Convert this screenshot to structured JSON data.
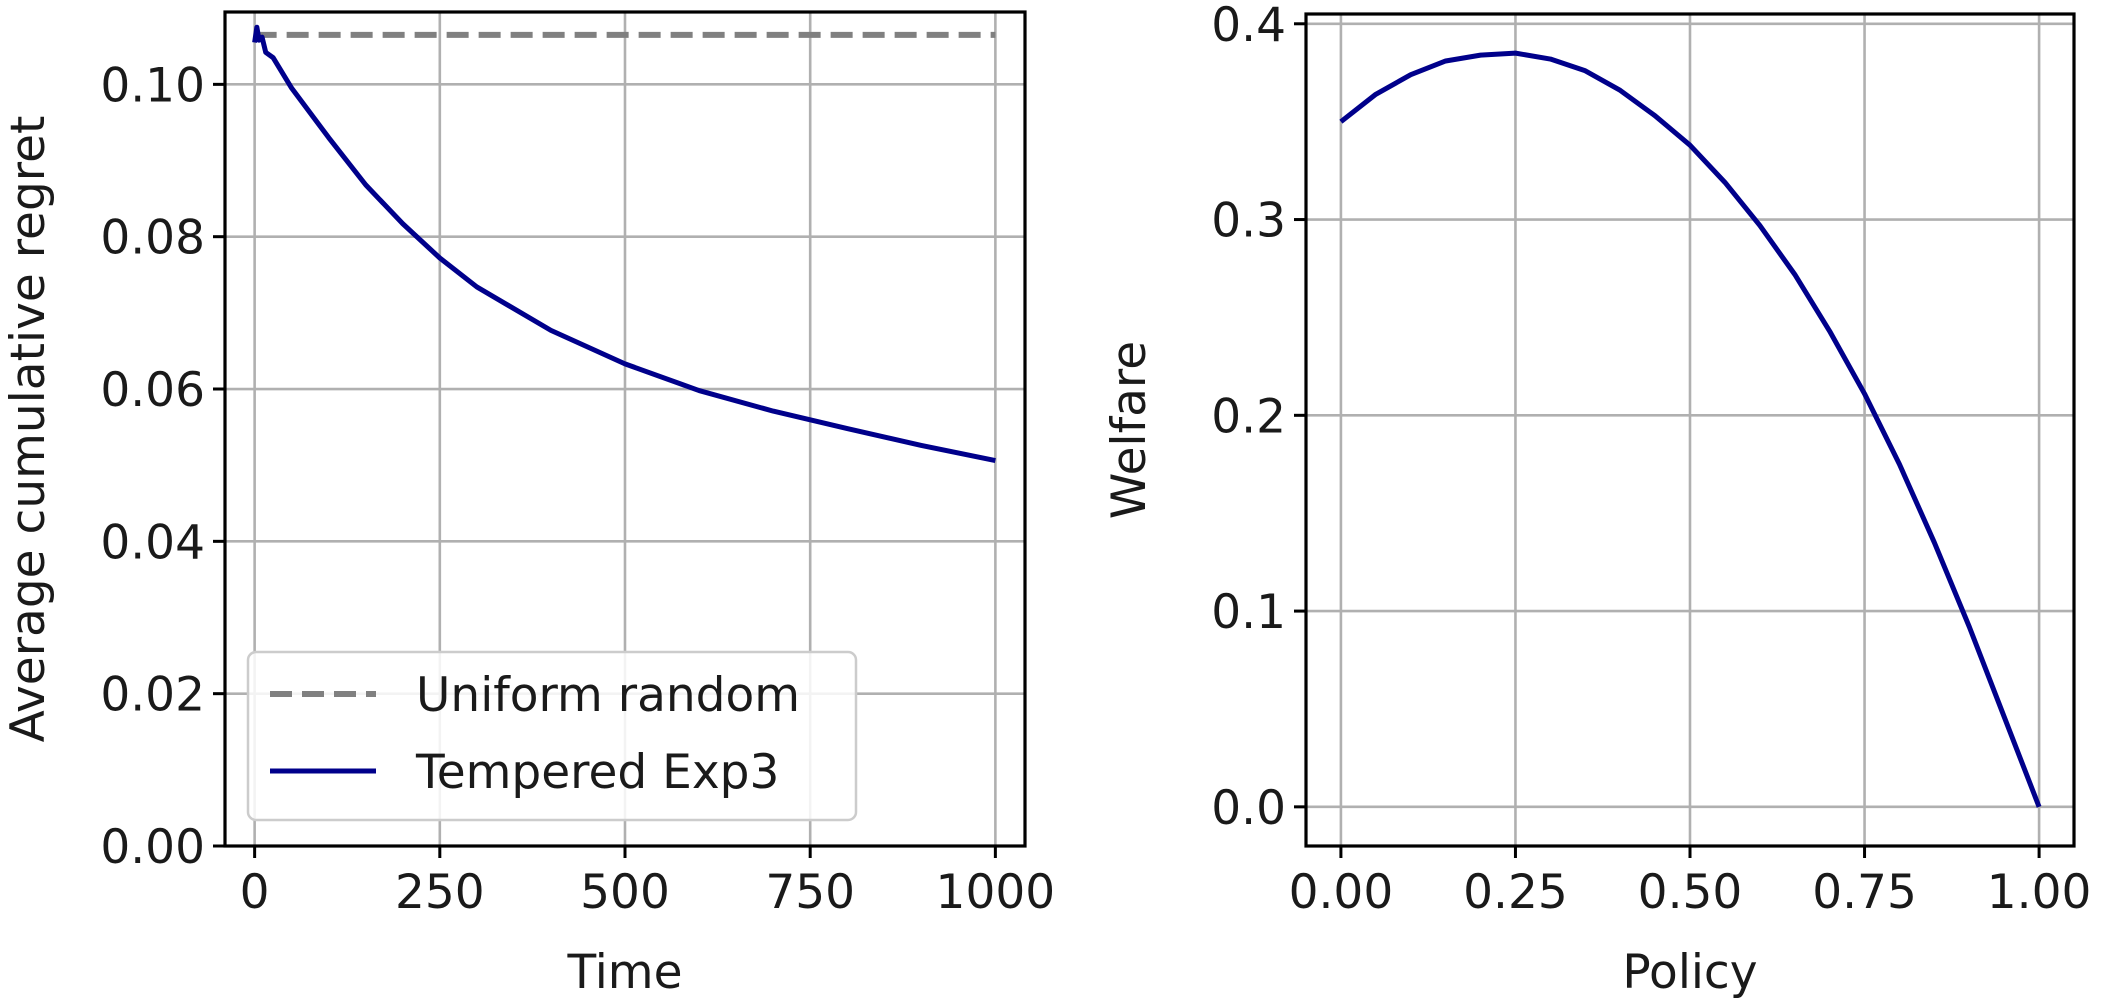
{
  "chart_data": [
    {
      "type": "line",
      "xlabel": "Time",
      "ylabel": "Average cumulative regret",
      "xlim": [
        -40,
        1040
      ],
      "ylim": [
        0.0,
        0.1095
      ],
      "xticks": [
        0,
        250,
        500,
        750,
        1000
      ],
      "xtick_labels": [
        "0",
        "250",
        "500",
        "750",
        "1000"
      ],
      "yticks": [
        0.0,
        0.02,
        0.04,
        0.06,
        0.08,
        0.1
      ],
      "ytick_labels": [
        "0.00",
        "0.02",
        "0.04",
        "0.06",
        "0.08",
        "0.10"
      ],
      "grid": true,
      "legend_position": "lower-left",
      "series": [
        {
          "name": "Uniform random",
          "style": "dashed",
          "color": "#808080",
          "x": [
            0,
            1000
          ],
          "y": [
            0.1065,
            0.1065
          ]
        },
        {
          "name": "Tempered Exp3",
          "style": "solid",
          "color": "#00008b",
          "x": [
            0,
            3,
            6,
            10,
            15,
            25,
            50,
            100,
            150,
            200,
            250,
            300,
            400,
            500,
            600,
            700,
            800,
            900,
            1000
          ],
          "y": [
            0.1055,
            0.1075,
            0.1058,
            0.1062,
            0.1042,
            0.1035,
            0.0995,
            0.093,
            0.0868,
            0.0817,
            0.0772,
            0.0734,
            0.0677,
            0.0633,
            0.0598,
            0.0571,
            0.0548,
            0.0526,
            0.0506
          ]
        }
      ]
    },
    {
      "type": "line",
      "xlabel": "Policy",
      "ylabel": "Welfare",
      "xlim": [
        -0.05,
        1.05
      ],
      "ylim": [
        -0.02,
        0.405
      ],
      "xticks": [
        0.0,
        0.25,
        0.5,
        0.75,
        1.0
      ],
      "xtick_labels": [
        "0.00",
        "0.25",
        "0.50",
        "0.75",
        "1.00"
      ],
      "yticks": [
        0.0,
        0.1,
        0.2,
        0.3,
        0.4
      ],
      "ytick_labels": [
        "0.0",
        "0.1",
        "0.2",
        "0.3",
        "0.4"
      ],
      "grid": true,
      "series": [
        {
          "style": "solid",
          "color": "#00008b",
          "x": [
            0.0,
            0.05,
            0.1,
            0.15,
            0.2,
            0.25,
            0.3,
            0.35,
            0.4,
            0.45,
            0.5,
            0.55,
            0.6,
            0.65,
            0.7,
            0.75,
            0.8,
            0.85,
            0.9,
            0.95,
            1.0
          ],
          "y": [
            0.35,
            0.364,
            0.374,
            0.381,
            0.384,
            0.385,
            0.382,
            0.376,
            0.366,
            0.353,
            0.338,
            0.319,
            0.297,
            0.272,
            0.243,
            0.211,
            0.175,
            0.135,
            0.092,
            0.046,
            0.0
          ]
        }
      ]
    }
  ]
}
